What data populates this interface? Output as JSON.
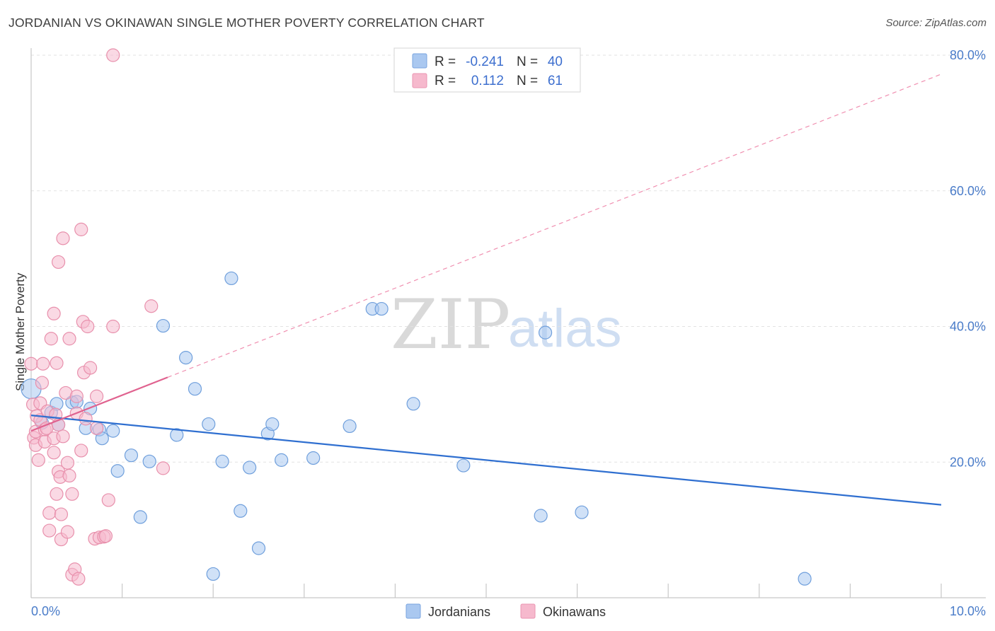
{
  "title": "JORDANIAN VS OKINAWAN SINGLE MOTHER POVERTY CORRELATION CHART",
  "source": "Source: ZipAtlas.com",
  "watermark": {
    "part1": "ZIP",
    "part2": "atlas"
  },
  "legend_top": {
    "rows": [
      {
        "r_label": "R = ",
        "r_value": "-0.241",
        "n_label": "N = ",
        "n_value": "40",
        "color": "#aac8f0"
      },
      {
        "r_label": "R = ",
        "r_value": "0.112",
        "n_label": "N = ",
        "n_value": "61",
        "color": "#f6b9cd"
      }
    ]
  },
  "legend_bottom": [
    {
      "label": "Jordanians",
      "color": "#aac8f0"
    },
    {
      "label": "Okinawans",
      "color": "#f6b9cd"
    }
  ],
  "chart_data": {
    "type": "scatter",
    "title": "JORDANIAN VS OKINAWAN SINGLE MOTHER POVERTY CORRELATION CHART",
    "xlabel": "",
    "ylabel": "Single Mother Poverty",
    "xlim": [
      0,
      10
    ],
    "ylim": [
      0,
      80
    ],
    "x_ticks_major": [
      0,
      10
    ],
    "x_tick_labels": [
      "0.0%",
      "10.0%"
    ],
    "x_ticks_minor": [
      1,
      2,
      3,
      4,
      5,
      6,
      7,
      8,
      9
    ],
    "y_ticks": [
      20,
      40,
      60,
      80
    ],
    "y_tick_labels": [
      "20.0%",
      "40.0%",
      "60.0%",
      "80.0%"
    ],
    "grid": true,
    "series": [
      {
        "name": "Jordanians",
        "color": "#aac8f0",
        "stroke": "#6f9fdc",
        "trend": {
          "x0": 0,
          "y0": 26.9,
          "x1": 10,
          "y1": 13.7,
          "color": "#2f6fd0",
          "dashed": false
        },
        "points": [
          [
            0.0,
            30.8
          ],
          [
            0.12,
            25.8
          ],
          [
            0.22,
            27.3
          ],
          [
            0.28,
            28.6
          ],
          [
            0.3,
            25.5
          ],
          [
            0.45,
            28.8
          ],
          [
            0.5,
            28.9
          ],
          [
            0.6,
            25.0
          ],
          [
            0.65,
            27.9
          ],
          [
            0.75,
            24.8
          ],
          [
            0.78,
            23.5
          ],
          [
            0.9,
            24.6
          ],
          [
            0.95,
            18.7
          ],
          [
            1.1,
            21.0
          ],
          [
            1.2,
            11.9
          ],
          [
            1.3,
            20.1
          ],
          [
            1.45,
            40.1
          ],
          [
            1.6,
            24.0
          ],
          [
            1.7,
            35.4
          ],
          [
            1.8,
            30.8
          ],
          [
            1.95,
            25.6
          ],
          [
            2.0,
            3.5
          ],
          [
            2.1,
            20.1
          ],
          [
            2.2,
            47.1
          ],
          [
            2.3,
            12.8
          ],
          [
            2.4,
            19.2
          ],
          [
            2.5,
            7.3
          ],
          [
            2.6,
            24.2
          ],
          [
            2.65,
            25.6
          ],
          [
            2.75,
            20.3
          ],
          [
            3.1,
            20.6
          ],
          [
            3.5,
            25.3
          ],
          [
            3.75,
            42.6
          ],
          [
            3.85,
            42.6
          ],
          [
            4.2,
            28.6
          ],
          [
            4.75,
            19.5
          ],
          [
            5.6,
            12.1
          ],
          [
            5.65,
            39.1
          ],
          [
            6.05,
            12.6
          ],
          [
            8.5,
            2.8
          ]
        ]
      },
      {
        "name": "Okinawans",
        "color": "#f6b9cd",
        "stroke": "#e890ac",
        "trend_solid": {
          "x0": 0,
          "y0": 24.6,
          "x1": 1.5,
          "y1": 32.5,
          "color": "#e0628f"
        },
        "trend_dashed": {
          "x0": 1.5,
          "y0": 32.5,
          "x1": 10,
          "y1": 77.2,
          "color": "#f08fb0"
        },
        "points": [
          [
            0.0,
            34.5
          ],
          [
            0.02,
            28.5
          ],
          [
            0.03,
            23.6
          ],
          [
            0.05,
            24.5
          ],
          [
            0.05,
            22.5
          ],
          [
            0.06,
            26.8
          ],
          [
            0.08,
            20.3
          ],
          [
            0.1,
            28.7
          ],
          [
            0.1,
            26.2
          ],
          [
            0.12,
            31.7
          ],
          [
            0.13,
            34.5
          ],
          [
            0.15,
            24.8
          ],
          [
            0.15,
            23.0
          ],
          [
            0.17,
            25.0
          ],
          [
            0.18,
            27.5
          ],
          [
            0.2,
            12.5
          ],
          [
            0.2,
            9.9
          ],
          [
            0.22,
            38.2
          ],
          [
            0.25,
            41.9
          ],
          [
            0.25,
            21.4
          ],
          [
            0.25,
            23.5
          ],
          [
            0.27,
            27.0
          ],
          [
            0.28,
            34.6
          ],
          [
            0.28,
            15.3
          ],
          [
            0.3,
            18.6
          ],
          [
            0.3,
            25.5
          ],
          [
            0.3,
            49.5
          ],
          [
            0.32,
            17.8
          ],
          [
            0.33,
            12.3
          ],
          [
            0.33,
            8.6
          ],
          [
            0.35,
            53.0
          ],
          [
            0.35,
            23.8
          ],
          [
            0.38,
            30.2
          ],
          [
            0.4,
            9.7
          ],
          [
            0.4,
            19.9
          ],
          [
            0.42,
            18.0
          ],
          [
            0.42,
            38.2
          ],
          [
            0.45,
            15.3
          ],
          [
            0.45,
            3.4
          ],
          [
            0.48,
            4.2
          ],
          [
            0.5,
            27.2
          ],
          [
            0.5,
            29.7
          ],
          [
            0.52,
            2.8
          ],
          [
            0.55,
            54.3
          ],
          [
            0.55,
            21.7
          ],
          [
            0.57,
            40.7
          ],
          [
            0.58,
            33.2
          ],
          [
            0.6,
            26.4
          ],
          [
            0.62,
            40.0
          ],
          [
            0.65,
            33.9
          ],
          [
            0.7,
            8.7
          ],
          [
            0.72,
            25.0
          ],
          [
            0.72,
            29.7
          ],
          [
            0.75,
            8.9
          ],
          [
            0.8,
            9.0
          ],
          [
            0.82,
            9.1
          ],
          [
            0.85,
            14.4
          ],
          [
            0.9,
            40.0
          ],
          [
            0.9,
            80.0
          ],
          [
            1.32,
            43.0
          ],
          [
            1.45,
            19.1
          ]
        ]
      }
    ]
  }
}
